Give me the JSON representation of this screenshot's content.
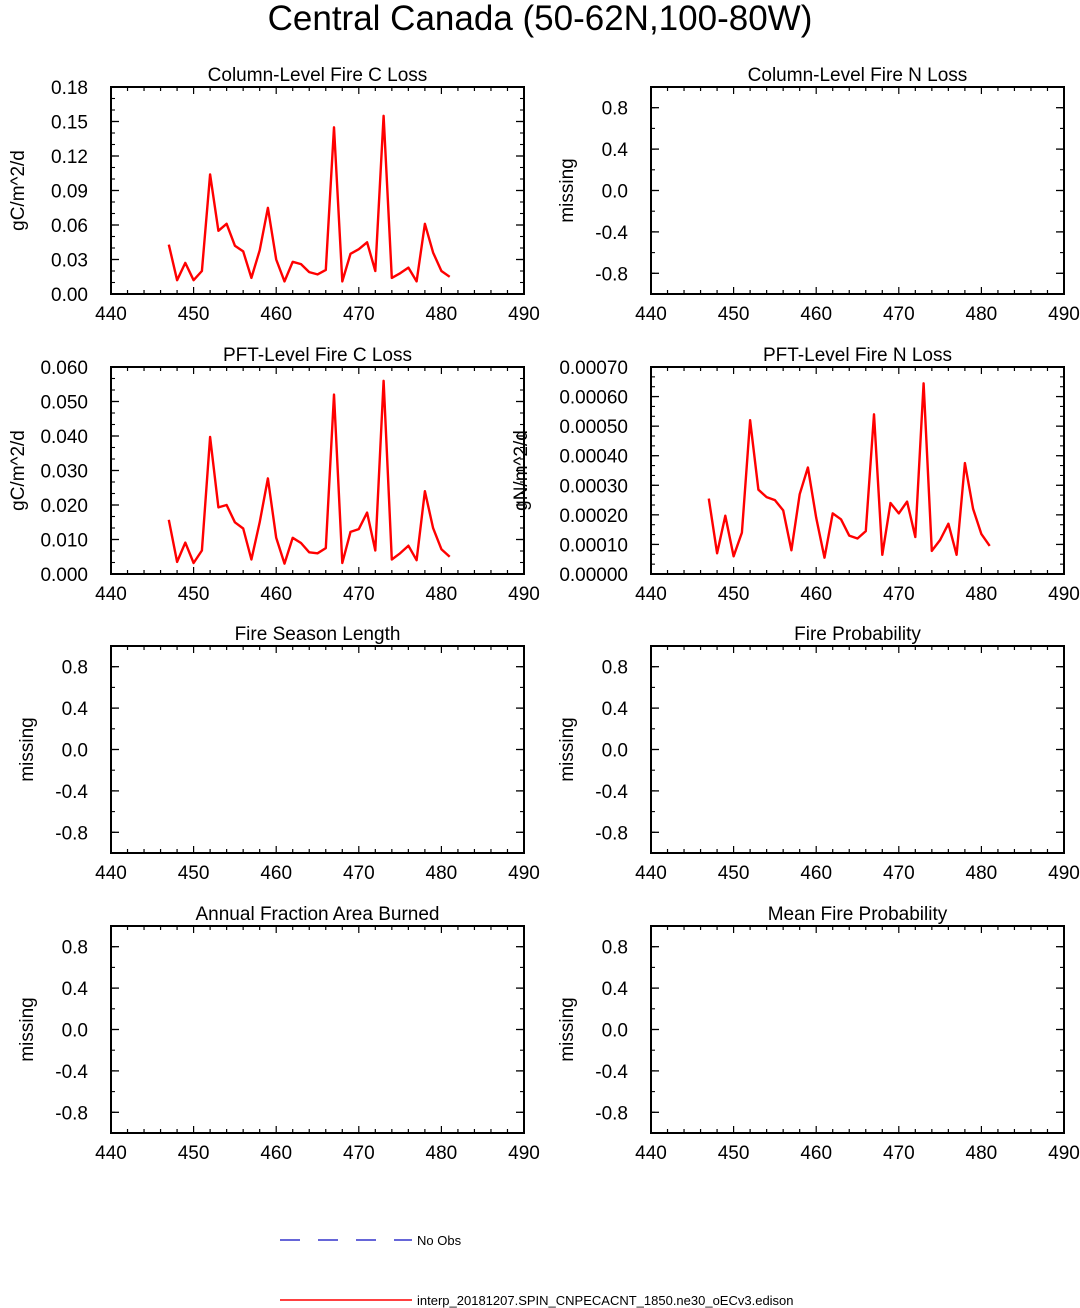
{
  "title": "Central Canada (50-62N,100-80W)",
  "legend": {
    "obs_label": "No Obs",
    "obs_color": "#3333cc",
    "model_label": "interp_20181207.SPIN_CNPECACNT_1850.ne30_oECv3.edison",
    "model_color": "#ff0000"
  },
  "chart_data": [
    {
      "type": "line",
      "title": "Column-Level Fire C Loss",
      "ylabel": "gC/m^2/d",
      "xlim": [
        440,
        490
      ],
      "ylim": [
        0,
        0.18
      ],
      "xticks": [
        440,
        450,
        460,
        470,
        480,
        490
      ],
      "yticks": [
        0.0,
        0.03,
        0.06,
        0.09,
        0.12,
        0.15,
        0.18
      ],
      "ytick_labels": [
        "0.00",
        "0.03",
        "0.06",
        "0.09",
        "0.12",
        "0.15",
        "0.18"
      ],
      "series": [
        {
          "x": [
            447,
            448,
            449,
            450,
            451,
            452,
            453,
            454,
            455,
            456,
            457,
            458,
            459,
            460,
            461,
            462,
            463,
            464,
            465,
            466,
            467,
            468,
            469,
            470,
            471,
            472,
            473,
            474,
            475,
            476,
            477,
            478,
            479,
            480,
            481
          ],
          "y": [
            0.043,
            0.012,
            0.027,
            0.012,
            0.02,
            0.104,
            0.055,
            0.061,
            0.042,
            0.037,
            0.014,
            0.038,
            0.075,
            0.03,
            0.011,
            0.028,
            0.026,
            0.019,
            0.017,
            0.021,
            0.145,
            0.011,
            0.035,
            0.039,
            0.045,
            0.02,
            0.155,
            0.014,
            0.018,
            0.023,
            0.011,
            0.061,
            0.036,
            0.02,
            0.015
          ]
        }
      ]
    },
    {
      "type": "line",
      "title": "Column-Level Fire N Loss",
      "ylabel": "missing",
      "xlim": [
        440,
        490
      ],
      "ylim": [
        -1,
        1
      ],
      "xticks": [
        440,
        450,
        460,
        470,
        480,
        490
      ],
      "yticks": [
        -0.8,
        -0.4,
        0.0,
        0.4,
        0.8
      ],
      "ytick_labels": [
        "-0.8",
        "-0.4",
        "0.0",
        "0.4",
        "0.8"
      ],
      "series": []
    },
    {
      "type": "line",
      "title": "PFT-Level Fire C Loss",
      "ylabel": "gC/m^2/d",
      "xlim": [
        440,
        490
      ],
      "ylim": [
        0,
        0.06
      ],
      "xticks": [
        440,
        450,
        460,
        470,
        480,
        490
      ],
      "yticks": [
        0.0,
        0.01,
        0.02,
        0.03,
        0.04,
        0.05,
        0.06
      ],
      "ytick_labels": [
        "0.000",
        "0.010",
        "0.020",
        "0.030",
        "0.040",
        "0.050",
        "0.060"
      ],
      "series": [
        {
          "x": [
            447,
            448,
            449,
            450,
            451,
            452,
            453,
            454,
            455,
            456,
            457,
            458,
            459,
            460,
            461,
            462,
            463,
            464,
            465,
            466,
            467,
            468,
            469,
            470,
            471,
            472,
            473,
            474,
            475,
            476,
            477,
            478,
            479,
            480,
            481
          ],
          "y": [
            0.0157,
            0.0035,
            0.0091,
            0.0032,
            0.0068,
            0.0397,
            0.0193,
            0.02,
            0.015,
            0.0132,
            0.0042,
            0.015,
            0.0277,
            0.0105,
            0.003,
            0.0105,
            0.009,
            0.0063,
            0.006,
            0.0075,
            0.052,
            0.0032,
            0.0122,
            0.013,
            0.0178,
            0.0068,
            0.056,
            0.0042,
            0.006,
            0.0082,
            0.004,
            0.024,
            0.0133,
            0.0072,
            0.005
          ]
        }
      ]
    },
    {
      "type": "line",
      "title": "PFT-Level Fire N Loss",
      "ylabel": "gN/m^2/d",
      "xlim": [
        440,
        490
      ],
      "ylim": [
        0,
        0.0007
      ],
      "xticks": [
        440,
        450,
        460,
        470,
        480,
        490
      ],
      "yticks": [
        0.0,
        0.0001,
        0.0002,
        0.0003,
        0.0004,
        0.0005,
        0.0006,
        0.0007
      ],
      "ytick_labels": [
        "0.00000",
        "0.00010",
        "0.00020",
        "0.00030",
        "0.00040",
        "0.00050",
        "0.00060",
        "0.00070"
      ],
      "series": [
        {
          "x": [
            447,
            448,
            449,
            450,
            451,
            452,
            453,
            454,
            455,
            456,
            457,
            458,
            459,
            460,
            461,
            462,
            463,
            464,
            465,
            466,
            467,
            468,
            469,
            470,
            471,
            472,
            473,
            474,
            475,
            476,
            477,
            478,
            479,
            480,
            481
          ],
          "y": [
            0.000255,
            7e-05,
            0.000197,
            6e-05,
            0.00014,
            0.00052,
            0.000285,
            0.00026,
            0.00025,
            0.000215,
            8e-05,
            0.00027,
            0.00036,
            0.00019,
            5.5e-05,
            0.000205,
            0.000185,
            0.00013,
            0.00012,
            0.000145,
            0.00054,
            6.5e-05,
            0.00024,
            0.000205,
            0.000245,
            0.000125,
            0.000645,
            7.8e-05,
            0.000115,
            0.00017,
            6.5e-05,
            0.000375,
            0.00022,
            0.000135,
            9.5e-05
          ]
        }
      ]
    },
    {
      "type": "line",
      "title": "Fire Season Length",
      "ylabel": "missing",
      "xlim": [
        440,
        490
      ],
      "ylim": [
        -1,
        1
      ],
      "xticks": [
        440,
        450,
        460,
        470,
        480,
        490
      ],
      "yticks": [
        -0.8,
        -0.4,
        0.0,
        0.4,
        0.8
      ],
      "ytick_labels": [
        "-0.8",
        "-0.4",
        "0.0",
        "0.4",
        "0.8"
      ],
      "series": []
    },
    {
      "type": "line",
      "title": "Fire Probability",
      "ylabel": "missing",
      "xlim": [
        440,
        490
      ],
      "ylim": [
        -1,
        1
      ],
      "xticks": [
        440,
        450,
        460,
        470,
        480,
        490
      ],
      "yticks": [
        -0.8,
        -0.4,
        0.0,
        0.4,
        0.8
      ],
      "ytick_labels": [
        "-0.8",
        "-0.4",
        "0.0",
        "0.4",
        "0.8"
      ],
      "series": []
    },
    {
      "type": "line",
      "title": "Annual Fraction Area Burned",
      "ylabel": "missing",
      "xlim": [
        440,
        490
      ],
      "ylim": [
        -1,
        1
      ],
      "xticks": [
        440,
        450,
        460,
        470,
        480,
        490
      ],
      "yticks": [
        -0.8,
        -0.4,
        0.0,
        0.4,
        0.8
      ],
      "ytick_labels": [
        "-0.8",
        "-0.4",
        "0.0",
        "0.4",
        "0.8"
      ],
      "series": []
    },
    {
      "type": "line",
      "title": "Mean Fire Probability",
      "ylabel": "missing",
      "xlim": [
        440,
        490
      ],
      "ylim": [
        -1,
        1
      ],
      "xticks": [
        440,
        450,
        460,
        470,
        480,
        490
      ],
      "yticks": [
        -0.8,
        -0.4,
        0.0,
        0.4,
        0.8
      ],
      "ytick_labels": [
        "-0.8",
        "-0.4",
        "0.0",
        "0.4",
        "0.8"
      ],
      "series": []
    }
  ]
}
